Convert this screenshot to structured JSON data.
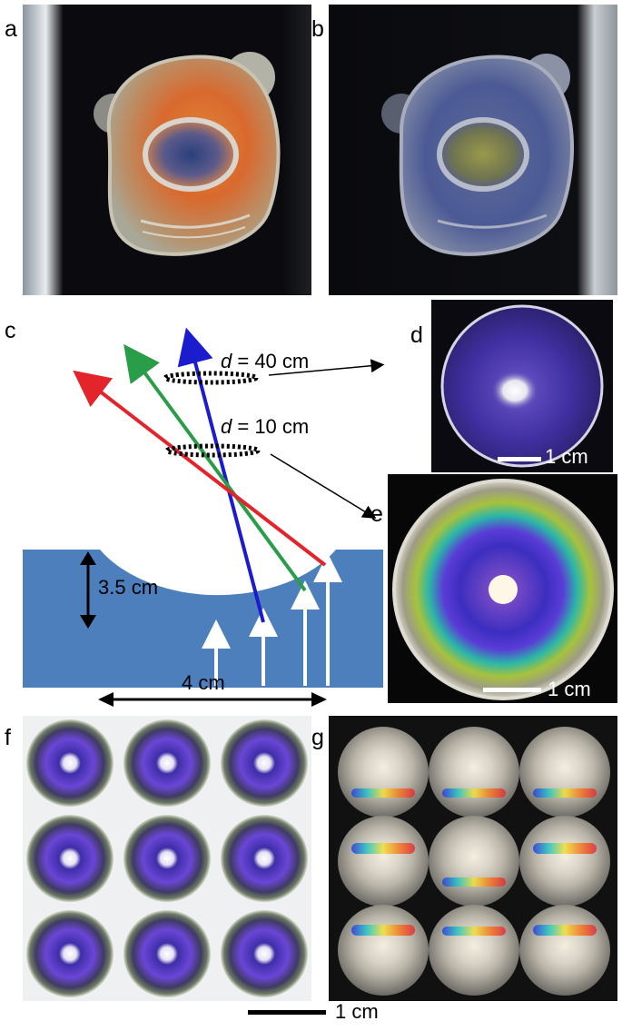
{
  "panel_labels": {
    "a": "a",
    "b": "b",
    "c": "c",
    "d": "d",
    "e": "e",
    "f": "f",
    "g": "g"
  },
  "diagram": {
    "distance_far": "d = 40 cm",
    "distance_far_var": "d",
    "distance_far_val": " = 40 cm",
    "distance_near_var": "d",
    "distance_near_val": " = 10 cm",
    "depth_label": "3.5 cm",
    "width_label": "4 cm",
    "colors": {
      "substrate": "#4e7fbd",
      "red": "#e3242b",
      "green": "#2a9d49",
      "blue": "#1c1ccf"
    }
  },
  "scale_labels": {
    "d": "1 cm",
    "e": "1 cm",
    "bottom": "1 cm"
  },
  "colors": {
    "background": "#ffffff",
    "photo_dark": "#0b0b0d"
  }
}
